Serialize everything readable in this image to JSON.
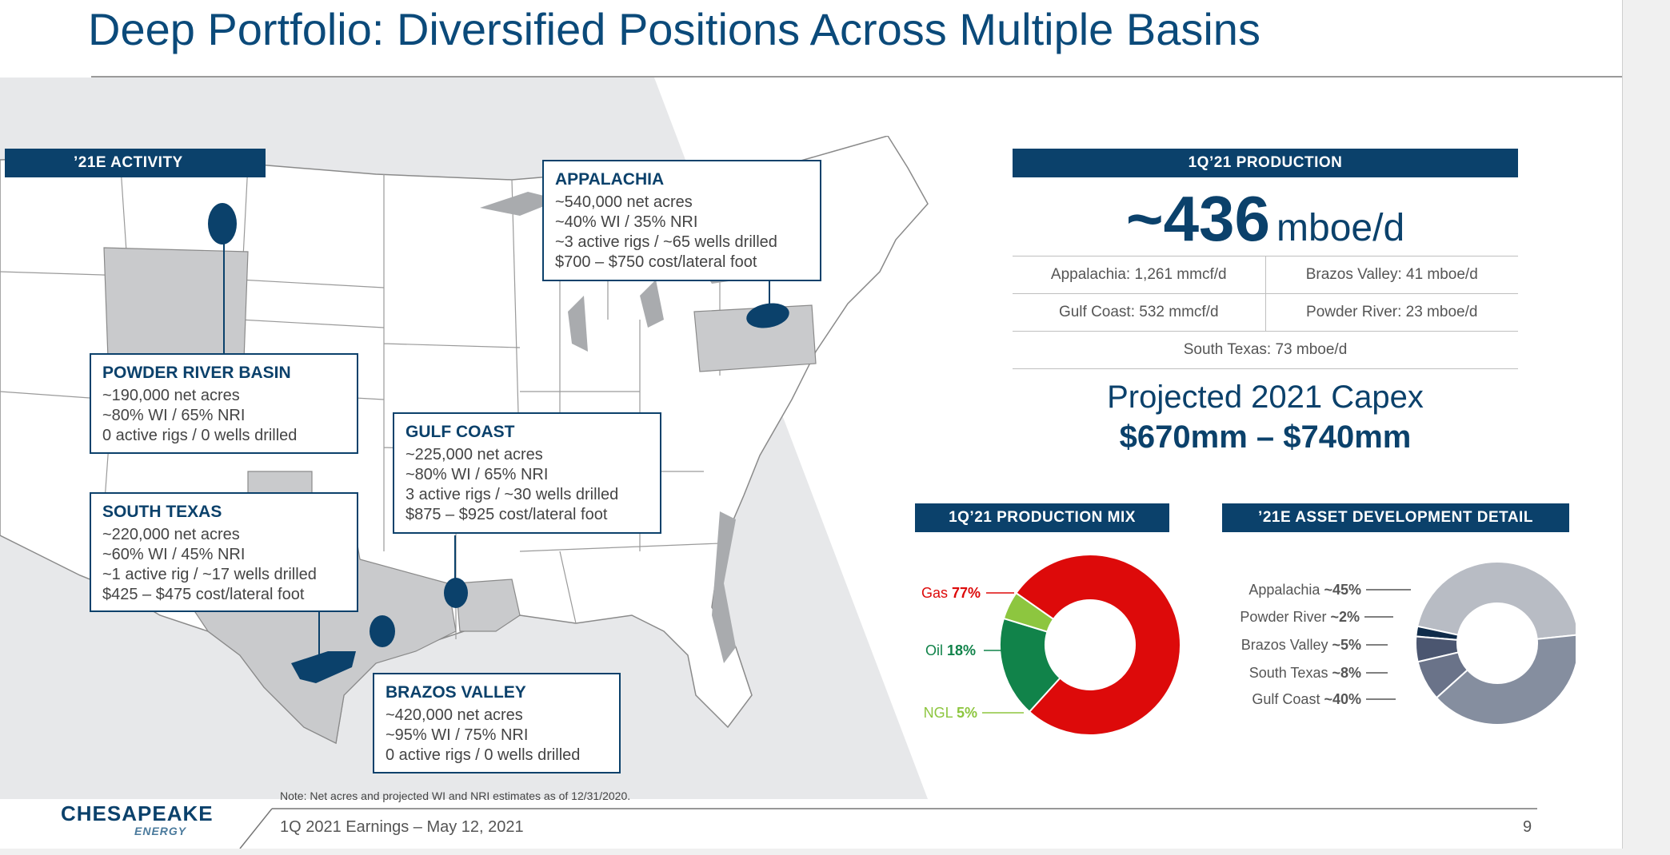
{
  "title": "Deep Portfolio: Diversified Positions Across Multiple Basins",
  "activity_header": "’21E ACTIVITY",
  "callouts": {
    "appalachia": {
      "title": "APPALACHIA",
      "lines": [
        "~540,000 net acres",
        "~40% WI  /  35% NRI",
        "~3 active rigs  /  ~65 wells drilled",
        "$700 – $750 cost/lateral foot"
      ]
    },
    "powder_river": {
      "title": "POWDER RIVER BASIN",
      "lines": [
        "~190,000 net acres",
        "~80% WI  /  65% NRI",
        "0 active rigs  /  0 wells drilled"
      ]
    },
    "gulf_coast": {
      "title": "GULF COAST",
      "lines": [
        "~225,000 net acres",
        "~80% WI  /  65% NRI",
        "3 active rigs  /  ~30 wells drilled",
        "$875 – $925 cost/lateral foot"
      ]
    },
    "south_texas": {
      "title": "SOUTH TEXAS",
      "lines": [
        "~220,000 net acres",
        "~60% WI  /  45% NRI",
        "~1 active rig  /  ~17 wells drilled",
        "$425 – $475 cost/lateral foot"
      ]
    },
    "brazos_valley": {
      "title": "BRAZOS VALLEY",
      "lines": [
        "~420,000 net acres",
        "~95% WI  /  75% NRI",
        "0 active rigs  /  0 wells drilled"
      ]
    }
  },
  "production": {
    "header": "1Q’21 PRODUCTION",
    "value": "~436",
    "unit": "mboe/d",
    "rows": [
      [
        "Appalachia: 1,261 mmcf/d",
        "Brazos Valley: 41 mboe/d"
      ],
      [
        "Gulf Coast: 532 mmcf/d",
        "Powder River: 23 mboe/d"
      ],
      [
        "South Texas: 73 mboe/d"
      ]
    ]
  },
  "capex": {
    "line1": "Projected 2021 Capex",
    "line2": "$670mm – $740mm"
  },
  "chart_data": [
    {
      "type": "pie",
      "title": "1Q’21 PRODUCTION MIX",
      "categories": [
        "Gas",
        "Oil",
        "NGL"
      ],
      "values": [
        77,
        18,
        5
      ],
      "labels": [
        "77%",
        "18%",
        "5%"
      ],
      "colors": [
        "#dd0a0a",
        "#11834a",
        "#8dc63f"
      ]
    },
    {
      "type": "pie",
      "title": "’21E ASSET DEVELOPMENT DETAIL",
      "categories": [
        "Appalachia",
        "Powder River",
        "Brazos Valley",
        "South Texas",
        "Gulf Coast"
      ],
      "values": [
        45,
        2,
        5,
        8,
        40
      ],
      "labels": [
        "~45%",
        "~2%",
        "~5%",
        "~8%",
        "~40%"
      ],
      "colors": [
        "#b8bcc4",
        "#102c4a",
        "#4b5670",
        "#6a7389",
        "#858e9f"
      ]
    }
  ],
  "note": "Note: Net acres and projected WI and NRI estimates as of 12/31/2020.",
  "footer": "1Q 2021 Earnings – May 12, 2021",
  "page_number": "9",
  "logo": {
    "name": "CHESAPEAKE",
    "sub": "ENERGY"
  }
}
